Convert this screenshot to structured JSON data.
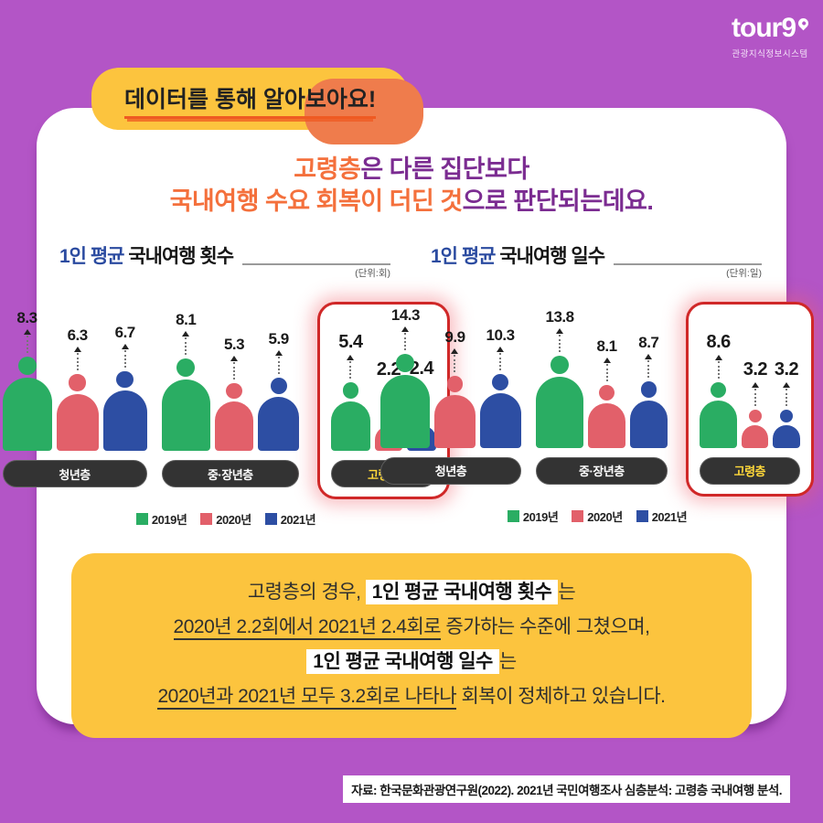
{
  "logo": {
    "brand": "tour9",
    "subtitle": "관광지식정보시스템"
  },
  "banner": {
    "text": "데이터를 통해 알아보아요!"
  },
  "title": {
    "l1a": "고령층",
    "l1b": "은 다른 집단보다",
    "l2a": "국내여행 수요 회복이 더딘 것",
    "l2b": "으로 판단되는데요."
  },
  "colors": {
    "background": "#b355c6",
    "banner_yellow": "#fcc43e",
    "banner_orange": "#ef7c4c",
    "title_purple": "#7b2c91",
    "title_orange": "#f4703c",
    "chart_title_blue": "#2b4ba0",
    "highlight_border_red": "#d02828",
    "pill_dark": "#333333",
    "pill_highlight_text": "#ffd83a",
    "callout_yellow": "#fcc43e",
    "series": [
      "#2aad63",
      "#e2606a",
      "#2d4ea3"
    ]
  },
  "chart_data": [
    {
      "type": "bar",
      "title": "1인 평균 국내여행 횟수",
      "title_prefix": "1인 평균",
      "title_main": " 국내여행 횟수",
      "unit": "(단위:회)",
      "categories": [
        "청년층",
        "중·장년층",
        "고령층"
      ],
      "series": [
        {
          "name": "2019년",
          "values": [
            8.3,
            8.1,
            5.4
          ]
        },
        {
          "name": "2020년",
          "values": [
            6.3,
            5.3,
            2.2
          ]
        },
        {
          "name": "2021년",
          "values": [
            6.7,
            5.9,
            2.4
          ]
        }
      ],
      "highlight_category": "고령층",
      "legend_position": "bottom-center",
      "ylim": [
        0,
        14.3
      ]
    },
    {
      "type": "bar",
      "title": "1인 평균 국내여행 일수",
      "title_prefix": "1인 평균",
      "title_main": " 국내여행 일수",
      "unit": "(단위:일)",
      "categories": [
        "청년층",
        "중·장년층",
        "고령층"
      ],
      "series": [
        {
          "name": "2019년",
          "values": [
            14.3,
            13.8,
            8.6
          ]
        },
        {
          "name": "2020년",
          "values": [
            9.9,
            8.1,
            3.2
          ]
        },
        {
          "name": "2021년",
          "values": [
            10.3,
            8.7,
            3.2
          ]
        }
      ],
      "highlight_category": "고령층",
      "legend_position": "bottom-center",
      "ylim": [
        0,
        14.3
      ]
    }
  ],
  "callout": {
    "c1a": "고령층의 경우, ",
    "c1b": "1인 평균 국내여행 횟수",
    "c1c": "는",
    "c2a": "2020년 2.2회에서 2021년 2.4회로",
    "c2b": " 증가하는 수준에 그쳤으며,",
    "c3a": "1인 평균 국내여행 일수",
    "c3b": "는",
    "c4a": "2020년과 2021년 모두 3.2회로 나타나",
    "c4b": " 회복이 정체하고 있습니다."
  },
  "source": "자료: 한국문화관광연구원(2022). 2021년 국민여행조사 심층분석: 고령층 국내여행 분석."
}
